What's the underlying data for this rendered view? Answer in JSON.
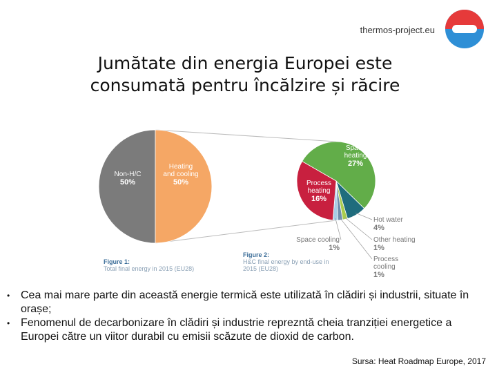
{
  "header": {
    "site": "thermos-project.eu",
    "title": [
      "Jumătate din energia Europei este",
      "consumată pentru încălzire și răcire"
    ]
  },
  "chart_data": [
    {
      "type": "pie",
      "categories": [
        "Non-H/C",
        "Heating and cooling"
      ],
      "values": [
        50,
        50
      ],
      "value_labels": [
        "50%",
        "50%"
      ],
      "colors": [
        "#7b7b7b",
        "#f5a765"
      ],
      "caption_title": "Figure 1:",
      "caption": "Total final energy in 2015 (EU28)"
    },
    {
      "type": "pie",
      "categories": [
        "Space heating",
        "Hot water",
        "Other heating",
        "Process cooling",
        "Space cooling",
        "Process heating"
      ],
      "values": [
        27,
        4,
        1,
        1,
        1,
        16
      ],
      "value_labels": [
        "27%",
        "4%",
        "1%",
        "1%",
        "1%",
        "16%"
      ],
      "colors": [
        "#62ad49",
        "#1f6c7d",
        "#a9cc4e",
        "#6f8fae",
        "#a7cde6",
        "#c8203f"
      ],
      "caption_title": "Figure 2:",
      "caption": "H&C final energy by end-use in 2015 (EU28)"
    }
  ],
  "bullets": [
    "Cea mai mare parte din această energie termică este utilizată în clădiri și industrii, situate în orașe;",
    "Fenomenul de decarbonizare în clădiri și industrie reprezntă cheia tranziției energetice a Europei către un viitor durabil cu emisii scăzute de dioxid de carbon."
  ],
  "source": "Sursa: Heat Roadmap Europe, 2017"
}
